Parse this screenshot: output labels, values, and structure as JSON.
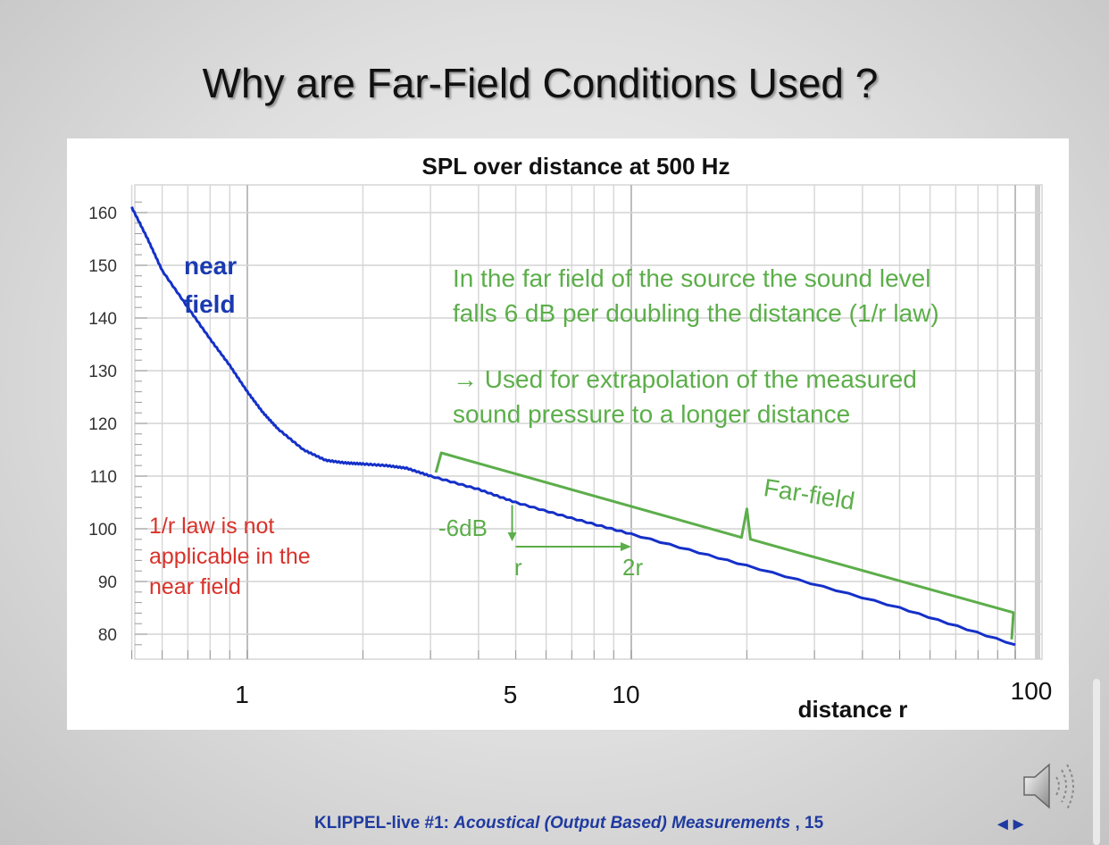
{
  "slide": {
    "title": "Why are Far-Field Conditions Used ?",
    "footer_prefix": "KLIPPEL-live  #1: ",
    "footer_italic": "Acoustical (Output Based) Measurements",
    "footer_suffix": " , 15",
    "nav_arrows": "◄►"
  },
  "annotations": {
    "near_line1": "near",
    "near_line2": "field",
    "far_text_line1": "In the far field of the source the sound level",
    "far_text_line2": "falls 6 dB per doubling the distance (1/r law)",
    "far_text_line3": "→ Used for extrapolation of the measured",
    "far_text_line4": "sound pressure to a longer distance",
    "red_line1": "1/r law is not",
    "red_line2": "applicable in the",
    "red_line3": "near field",
    "farfield": "Far-field",
    "minus6": "-6dB",
    "r": "r",
    "r2": "2r"
  },
  "colors": {
    "curve": "#1530c8",
    "annotation_green": "#5cae4a",
    "annotation_red": "#d9322a",
    "near_label": "#1a3ab0"
  },
  "icons": [
    "speaker-icon",
    "prev-arrow-icon",
    "next-arrow-icon"
  ],
  "chart_data": {
    "type": "line",
    "title": "SPL over distance at 500 Hz",
    "xlabel": "distance r",
    "ylabel": "",
    "xscale": "log",
    "xlim": [
      0.5,
      100
    ],
    "ylim": [
      78,
      162
    ],
    "x_tick_labels": [
      "1",
      "5",
      "10",
      "100"
    ],
    "x_tick_values": [
      1,
      5,
      10,
      100
    ],
    "y_ticks": [
      80,
      90,
      100,
      110,
      120,
      130,
      140,
      150,
      160
    ],
    "grid": true,
    "series": [
      {
        "x": [
          0.5,
          0.55,
          0.6,
          0.7,
          0.8,
          0.9,
          1.0,
          1.1,
          1.2,
          1.4,
          1.6,
          1.8,
          2.0,
          2.3,
          2.6,
          3.0,
          4.0,
          5.0,
          7.0,
          10.0,
          20.0,
          50.0,
          100.0
        ],
        "y": [
          161,
          155,
          149,
          142,
          136,
          131,
          126,
          122,
          119,
          115,
          113,
          112.5,
          112.3,
          112,
          111.5,
          110,
          107.5,
          105,
          102,
          99,
          93,
          85,
          78
        ]
      }
    ]
  }
}
